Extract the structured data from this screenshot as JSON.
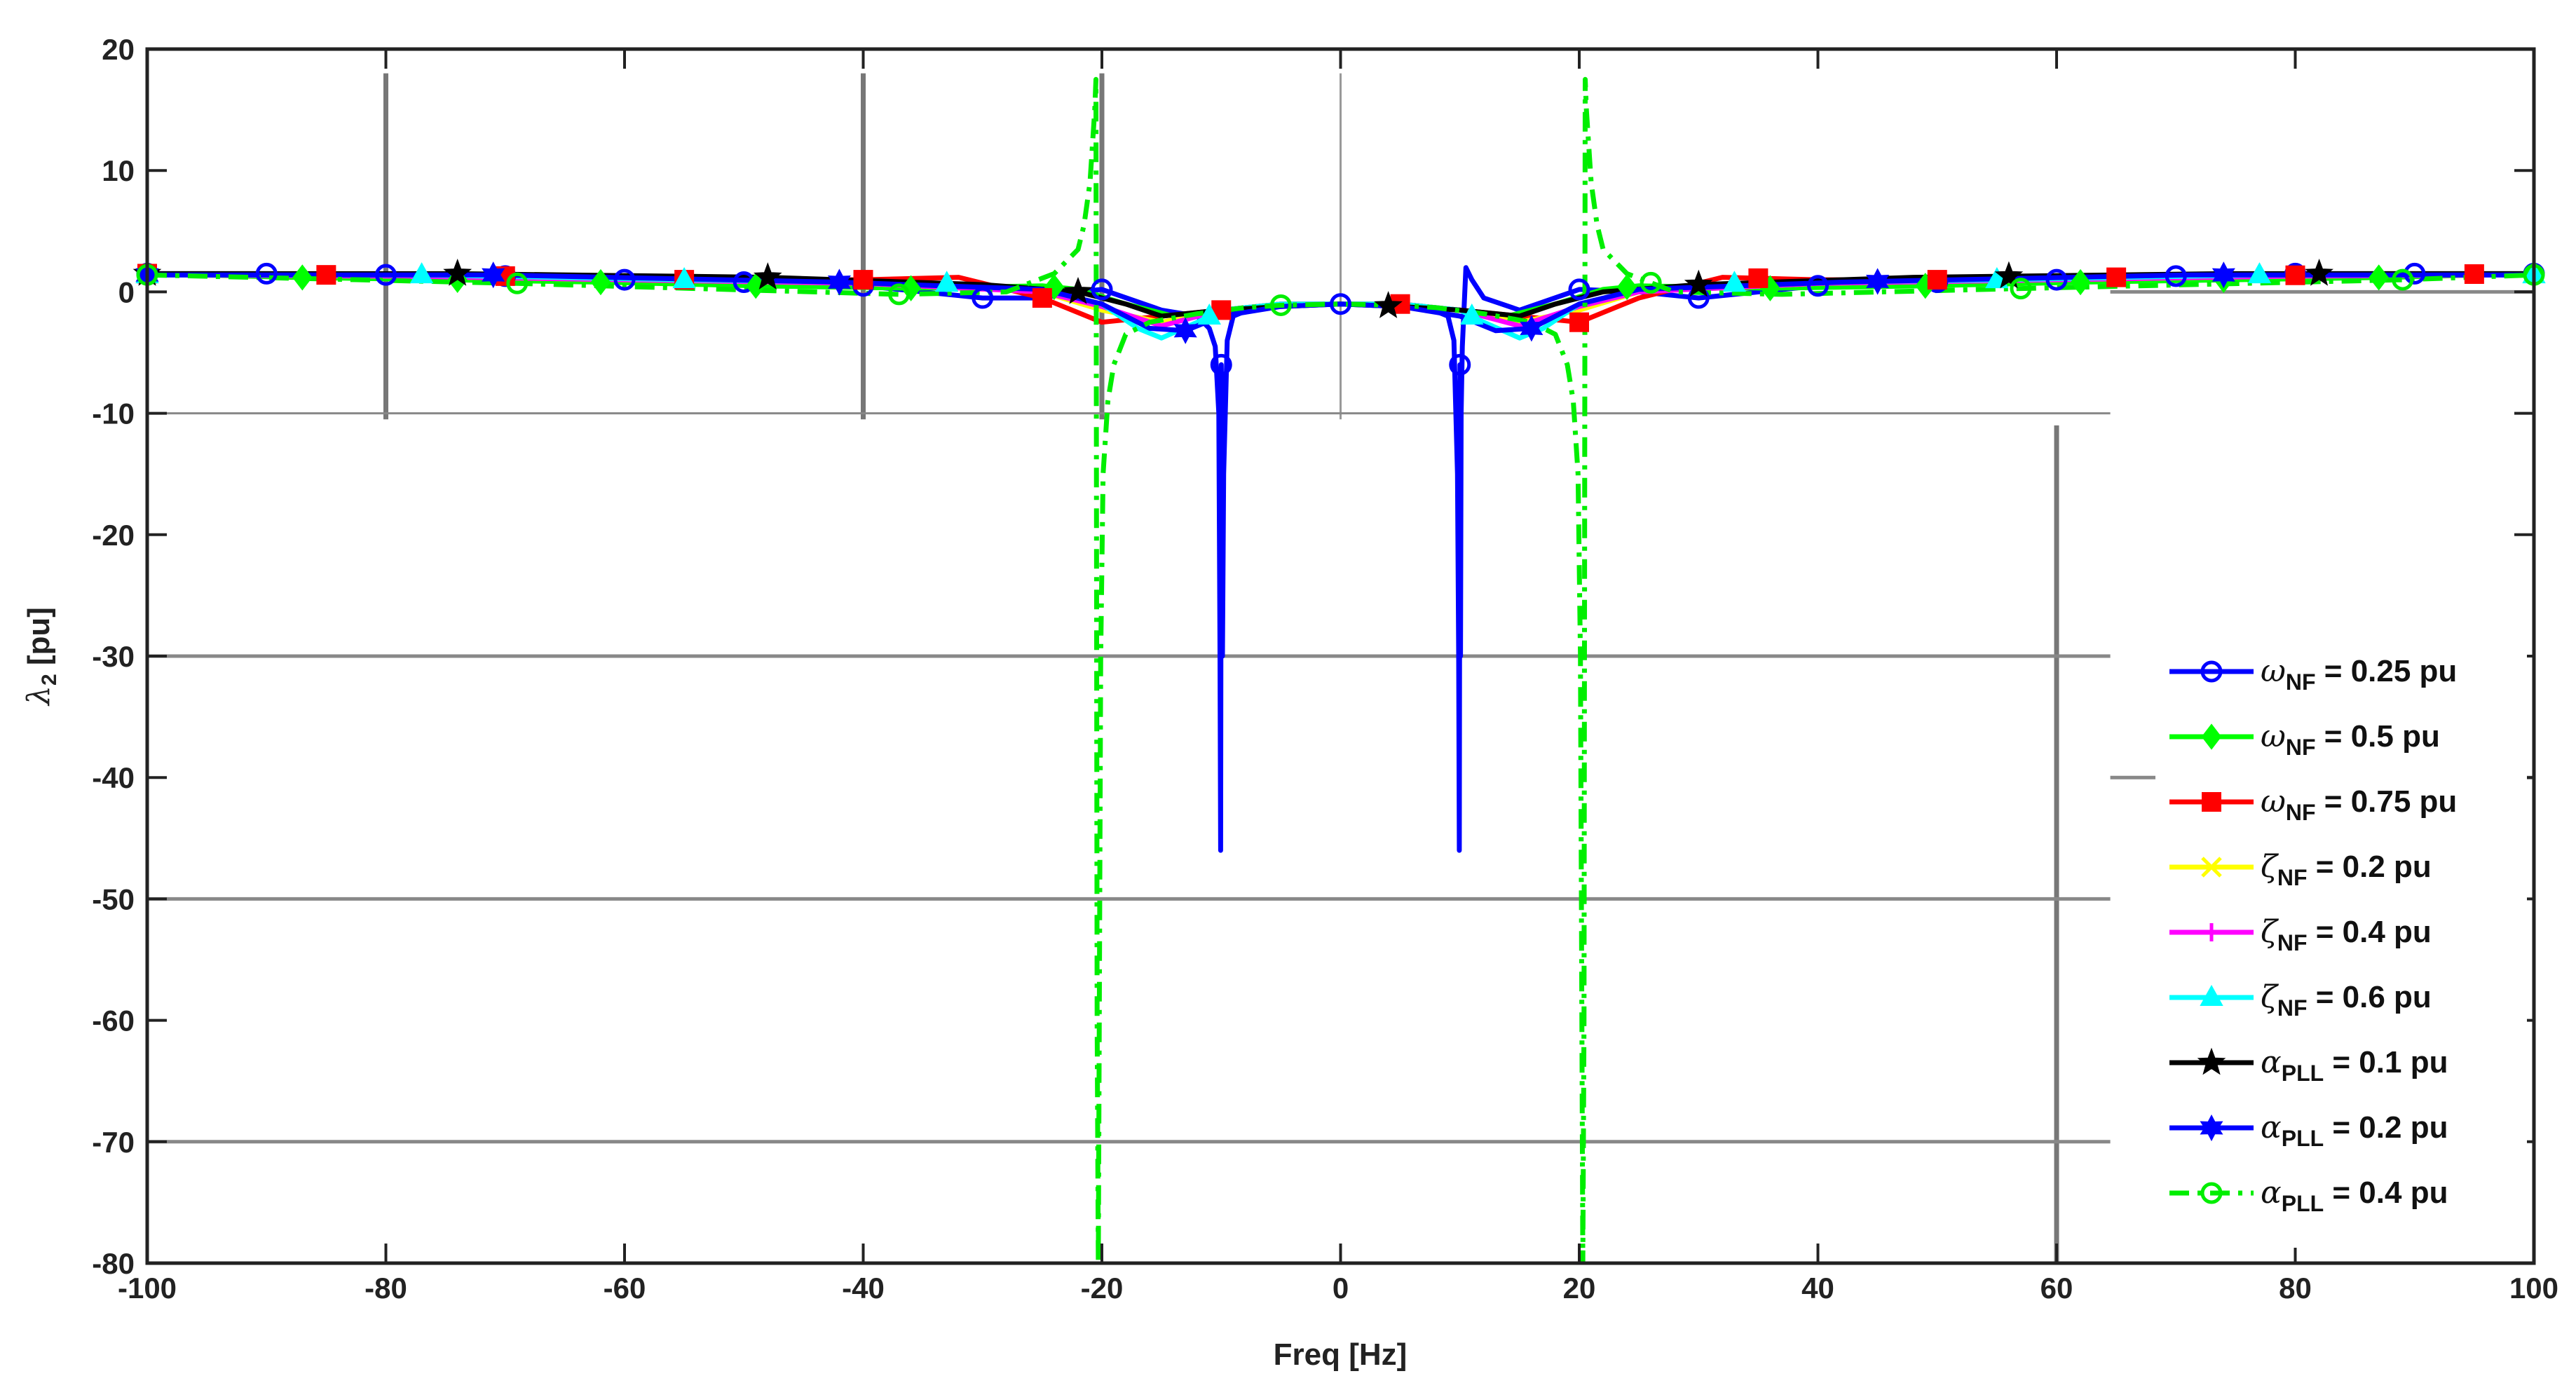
{
  "chart_data": {
    "type": "line",
    "title": "",
    "xlabel": "Freq [Hz]",
    "ylabel_symbol": "λ",
    "ylabel_sub": "2",
    "ylabel_unit": " [pu]",
    "xlim": [
      -100,
      100
    ],
    "ylim": [
      -80,
      20
    ],
    "xticks": [
      -100,
      -80,
      -60,
      -40,
      -20,
      0,
      20,
      40,
      60,
      80,
      100
    ],
    "yticks": [
      20,
      10,
      0,
      -10,
      -20,
      -30,
      -40,
      -50,
      -60,
      -70,
      -80
    ],
    "grid": false,
    "legend_position": "lower-right",
    "series": [
      {
        "name": "ω_NF = 0.25 pu",
        "label_sym": "ω",
        "label_sub": "NF",
        "label_rest": " = 0.25 pu",
        "color": "#0000ff",
        "dash": "solid",
        "marker": "circle",
        "x": [
          -100,
          -90,
          -70,
          -60,
          -50,
          -40,
          -30,
          -25,
          -22,
          -20,
          -15,
          -12,
          -11,
          -10.5,
          -10.2,
          -10.1,
          -10.05,
          -10,
          -9.95,
          -9.9,
          -9.8,
          -9.5,
          -9,
          -7,
          -5,
          0,
          5,
          7,
          9,
          9.5,
          9.8,
          9.9,
          9.95,
          10,
          10.05,
          10.1,
          10.2,
          10.5,
          11,
          12,
          15,
          20,
          25,
          30,
          40,
          50,
          60,
          70,
          80,
          90,
          100
        ],
        "y": [
          1.5,
          1.5,
          1.3,
          1.0,
          0.8,
          0.5,
          -0.5,
          -0.5,
          0.0,
          0.2,
          -1.5,
          -2.0,
          -3.0,
          -4.5,
          -10,
          -30,
          -46,
          -6,
          -10,
          -30,
          -15,
          -4,
          -2,
          -1.2,
          -1.0,
          -1.0,
          -1.0,
          -1.2,
          -2,
          -4,
          -15,
          -30,
          -46,
          -6,
          -30,
          -10,
          -4.5,
          2,
          1,
          -0.5,
          -1.5,
          0.2,
          0.0,
          -0.5,
          0.5,
          0.8,
          1.0,
          1.3,
          1.5,
          1.5,
          1.5
        ],
        "marker_x": [
          -100,
          -90,
          -80,
          -70,
          -60,
          -50,
          -40,
          -30,
          -20,
          -10,
          0,
          10,
          20,
          30,
          40,
          50,
          60,
          70,
          80,
          90,
          100
        ]
      },
      {
        "name": "ω_NF = 0.5 pu",
        "label_sym": "ω",
        "label_sub": "NF",
        "label_rest": " = 0.5 pu",
        "color": "#00ff00",
        "dash": "solid",
        "marker": "diamond",
        "x": [
          -100,
          -88,
          -75,
          -62,
          -49,
          -36,
          -25,
          -22,
          -18,
          -14,
          -10,
          -5,
          0,
          5,
          10,
          14,
          18,
          22,
          25,
          36,
          49,
          62,
          75,
          88,
          100
        ],
        "y": [
          1.5,
          1.2,
          1.0,
          0.8,
          0.5,
          0.3,
          0.5,
          0.2,
          -1.0,
          -2.0,
          -1.5,
          -1.0,
          -1.0,
          -1.0,
          -1.5,
          -2.0,
          -1.0,
          0.2,
          0.5,
          0.3,
          0.5,
          0.8,
          1.0,
          1.2,
          1.5
        ],
        "marker_x": [
          -100,
          -87,
          -74,
          -62,
          -49,
          -36,
          -24,
          24,
          36,
          49,
          62,
          74,
          87,
          100
        ]
      },
      {
        "name": "ω_NF = 0.75 pu",
        "label_sym": "ω",
        "label_sub": "NF",
        "label_rest": " = 0.75 pu",
        "color": "#ff0000",
        "dash": "solid",
        "marker": "square",
        "x": [
          -100,
          -85,
          -70,
          -55,
          -40,
          -32,
          -25,
          -20,
          -15,
          -10,
          -5,
          0,
          5,
          10,
          15,
          20,
          25,
          32,
          40,
          55,
          70,
          85,
          100
        ],
        "y": [
          1.5,
          1.4,
          1.3,
          1.0,
          1.0,
          1.2,
          -0.5,
          -2.5,
          -2.0,
          -1.5,
          -1.0,
          -1.0,
          -1.0,
          -1.5,
          -2.0,
          -2.5,
          -0.5,
          1.2,
          1.0,
          1.0,
          1.3,
          1.4,
          1.5
        ],
        "marker_x": [
          -100,
          -85,
          -70,
          -55,
          -40,
          -25,
          -10,
          5,
          20,
          35,
          50,
          65,
          80,
          95
        ]
      },
      {
        "name": "ζ_NF = 0.2 pu",
        "label_sym": "ζ",
        "label_sub": "NF",
        "label_rest": " = 0.2 pu",
        "color": "#ffff00",
        "dash": "solid",
        "marker": "x",
        "x": [
          -100,
          -80,
          -60,
          -40,
          -25,
          -20,
          -15,
          -10,
          -5,
          0,
          5,
          10,
          15,
          20,
          25,
          40,
          60,
          80,
          100
        ],
        "y": [
          1.4,
          1.3,
          1.0,
          0.7,
          0.0,
          -1.5,
          -2.5,
          -1.5,
          -1.0,
          -1.0,
          -1.0,
          -1.5,
          -2.5,
          -1.5,
          0.0,
          0.7,
          1.0,
          1.3,
          1.4
        ],
        "marker_x": []
      },
      {
        "name": "ζ_NF = 0.4 pu",
        "label_sym": "ζ",
        "label_sub": "NF",
        "label_rest": " = 0.4 pu",
        "color": "#ff00ff",
        "dash": "solid",
        "marker": "plus",
        "x": [
          -100,
          -80,
          -60,
          -40,
          -25,
          -20,
          -15,
          -10,
          -5,
          0,
          5,
          10,
          15,
          20,
          25,
          40,
          60,
          80,
          100
        ],
        "y": [
          1.4,
          1.3,
          1.0,
          0.7,
          0.0,
          -1.2,
          -2.8,
          -1.5,
          -1.0,
          -1.0,
          -1.0,
          -1.5,
          -2.8,
          -1.2,
          0.0,
          0.7,
          1.0,
          1.3,
          1.4
        ],
        "marker_x": []
      },
      {
        "name": "ζ_NF = 0.6 pu",
        "label_sym": "ζ",
        "label_sub": "NF",
        "label_rest": " = 0.6 pu",
        "color": "#00ffff",
        "dash": "solid",
        "marker": "triangle",
        "x": [
          -100,
          -77,
          -55,
          -33,
          -25,
          -20,
          -17,
          -15,
          -12,
          -10,
          -5,
          0,
          5,
          10,
          12,
          15,
          17,
          20,
          25,
          33,
          55,
          77,
          100
        ],
        "y": [
          1.4,
          1.4,
          1.0,
          0.7,
          0.2,
          -1.0,
          -3.0,
          -3.8,
          -2.5,
          -1.5,
          -1.0,
          -1.0,
          -1.0,
          -1.5,
          -2.5,
          -3.8,
          -3.0,
          -1.0,
          0.2,
          0.7,
          1.0,
          1.4,
          1.4
        ],
        "marker_x": [
          -100,
          -77,
          -55,
          -33,
          -11,
          11,
          33,
          55,
          77,
          100
        ]
      },
      {
        "name": "α_PLL = 0.1 pu",
        "label_sym": "α",
        "label_sub": "PLL",
        "label_rest": " = 0.1 pu",
        "color": "#000000",
        "dash": "solid",
        "marker": "star",
        "x": [
          -100,
          -74,
          -48,
          -30,
          -22,
          -18,
          -15,
          -10,
          -5,
          0,
          5,
          10,
          15,
          18,
          22,
          30,
          48,
          74,
          100
        ],
        "y": [
          1.5,
          1.5,
          1.2,
          0.6,
          0.0,
          -1.0,
          -2.0,
          -1.5,
          -1.2,
          -1.0,
          -1.2,
          -1.5,
          -2.0,
          -1.0,
          0.0,
          0.6,
          1.2,
          1.5,
          1.5
        ],
        "marker_x": [
          -100,
          -74,
          -48,
          -22,
          4,
          30,
          56,
          82
        ]
      },
      {
        "name": "α_PLL = 0.2 pu",
        "label_sym": "α",
        "label_sub": "PLL",
        "label_rest": " = 0.2 pu",
        "color": "#0000ff",
        "dash": "solid",
        "marker": "hexagram",
        "x": [
          -100,
          -71,
          -42,
          -25,
          -20,
          -16,
          -13,
          -10,
          -5,
          0,
          5,
          10,
          13,
          16,
          20,
          25,
          42,
          71,
          100
        ],
        "y": [
          1.4,
          1.4,
          0.8,
          0.2,
          -1.0,
          -3.0,
          -3.2,
          -2.0,
          -1.2,
          -1.0,
          -1.2,
          -2.0,
          -3.2,
          -3.0,
          -1.0,
          0.2,
          0.8,
          1.4,
          1.4
        ],
        "marker_x": [
          -100,
          -71,
          -42,
          -13,
          16,
          45,
          74
        ]
      },
      {
        "name": "α_PLL = 0.4 pu",
        "label_sym": "α",
        "label_sub": "PLL",
        "label_rest": " = 0.4 pu",
        "color": "#00ee00",
        "dash": "dashdot",
        "marker": "circle",
        "x": [
          -100,
          -69,
          -37,
          -28,
          -24,
          -22,
          -21.5,
          -21,
          -20.8,
          -20.6,
          -20.5,
          -20.4,
          -20.3,
          -20.1,
          -19.9,
          -19.5,
          -19,
          -18,
          -16,
          -12,
          -8,
          -5,
          0,
          5,
          8,
          12,
          16,
          18,
          19,
          19.5,
          19.9,
          20.1,
          20.3,
          20.4,
          20.5,
          20.6,
          20.8,
          21,
          21.5,
          22,
          24,
          28,
          37,
          58,
          89,
          100
        ],
        "y": [
          1.4,
          0.7,
          -0.2,
          0.0,
          1.5,
          3.5,
          5.5,
          9,
          12,
          15,
          17.5,
          -60,
          -80,
          -30,
          -15,
          -9,
          -6,
          -3.5,
          -2.5,
          -1.8,
          -1.3,
          -1.1,
          -1.0,
          -1.1,
          -1.3,
          -1.8,
          -2.5,
          -3.5,
          -6,
          -9,
          -15,
          -30,
          -80,
          -60,
          17.5,
          15,
          12,
          9,
          5.5,
          3.5,
          1.5,
          0.0,
          -0.2,
          0.3,
          1.0,
          1.4
        ],
        "marker_x": [
          -100,
          -69,
          -37,
          -5,
          26,
          57,
          89,
          100
        ]
      }
    ],
    "overlay_lines": [
      {
        "orient": "v",
        "pos": -80,
        "from": -10.5,
        "to": 18,
        "color": "#777777",
        "width": 7
      },
      {
        "orient": "v",
        "pos": -40,
        "from": -10.5,
        "to": 18,
        "color": "#777777",
        "width": 7
      },
      {
        "orient": "v",
        "pos": -20,
        "from": -10.5,
        "to": 18,
        "color": "#777777",
        "width": 7
      },
      {
        "orient": "v",
        "pos": 0,
        "from": -10.5,
        "to": 18,
        "color": "#999999",
        "width": 3
      },
      {
        "orient": "v",
        "pos": 60,
        "from": -80,
        "to": -11,
        "color": "#777777",
        "width": 7
      },
      {
        "orient": "h",
        "pos": -10,
        "from": -100,
        "to": 64.5,
        "color": "#888888",
        "width": 3
      },
      {
        "orient": "h",
        "pos": -30,
        "from": -100,
        "to": 64.5,
        "color": "#888888",
        "width": 5
      },
      {
        "orient": "h",
        "pos": -50,
        "from": -100,
        "to": 64.5,
        "color": "#888888",
        "width": 5
      },
      {
        "orient": "h",
        "pos": -70,
        "from": -100,
        "to": 64.5,
        "color": "#888888",
        "width": 5
      },
      {
        "orient": "h",
        "pos": -40,
        "from": 64.5,
        "to": 100,
        "color": "#888888",
        "width": 5
      },
      {
        "orient": "h",
        "pos": 0,
        "from": 64.5,
        "to": 100,
        "color": "#888888",
        "width": 5
      }
    ]
  }
}
